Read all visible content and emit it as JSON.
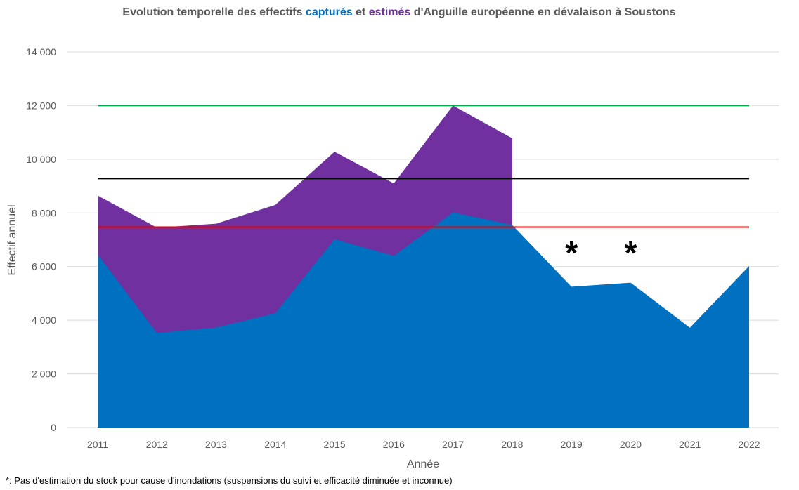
{
  "chart_data": {
    "type": "area",
    "title": {
      "part1": "Evolution temporelle des effectifs ",
      "part2": "capturés",
      "part3": " et ",
      "part4": "estimés",
      "part5": " d'Anguille européenne en dévalaison à Soustons"
    },
    "xlabel": "Année",
    "ylabel": "Effectif annuel",
    "x": [
      2011,
      2012,
      2013,
      2014,
      2015,
      2016,
      2017,
      2018,
      2019,
      2020,
      2021,
      2022
    ],
    "ylim": [
      0,
      14000
    ],
    "yticks": [
      0,
      2000,
      4000,
      6000,
      8000,
      10000,
      12000,
      14000
    ],
    "ytick_labels": [
      "0",
      "2 000",
      "4 000",
      "6 000",
      "8 000",
      "10 000",
      "12 000",
      "14 000"
    ],
    "grid": true,
    "series": [
      {
        "key": "estimated",
        "color": "#7030a0",
        "values": [
          8650,
          7450,
          7600,
          8300,
          10280,
          9100,
          12000,
          10780,
          null,
          null,
          null,
          null
        ]
      },
      {
        "key": "captured",
        "color": "#0070c0",
        "values": [
          6450,
          3520,
          3730,
          4260,
          7020,
          6400,
          8020,
          7550,
          5250,
          5400,
          3720,
          6020
        ]
      }
    ],
    "reference_lines": [
      {
        "y": 12000,
        "color": "#00b050"
      },
      {
        "y": 9280,
        "color": "#000000"
      },
      {
        "y": 7470,
        "color": "#e00000"
      }
    ],
    "markers": [
      {
        "x": 2019,
        "text": "*"
      },
      {
        "x": 2020,
        "text": "*"
      }
    ],
    "footnote": "*: Pas d'estimation du stock pour cause d'inondations (suspensions du suivi et efficacité diminuée et inconnue)",
    "colors": {
      "captured_text": "#0070c0",
      "estimated_text": "#7030a0",
      "title_text": "#595959"
    }
  }
}
